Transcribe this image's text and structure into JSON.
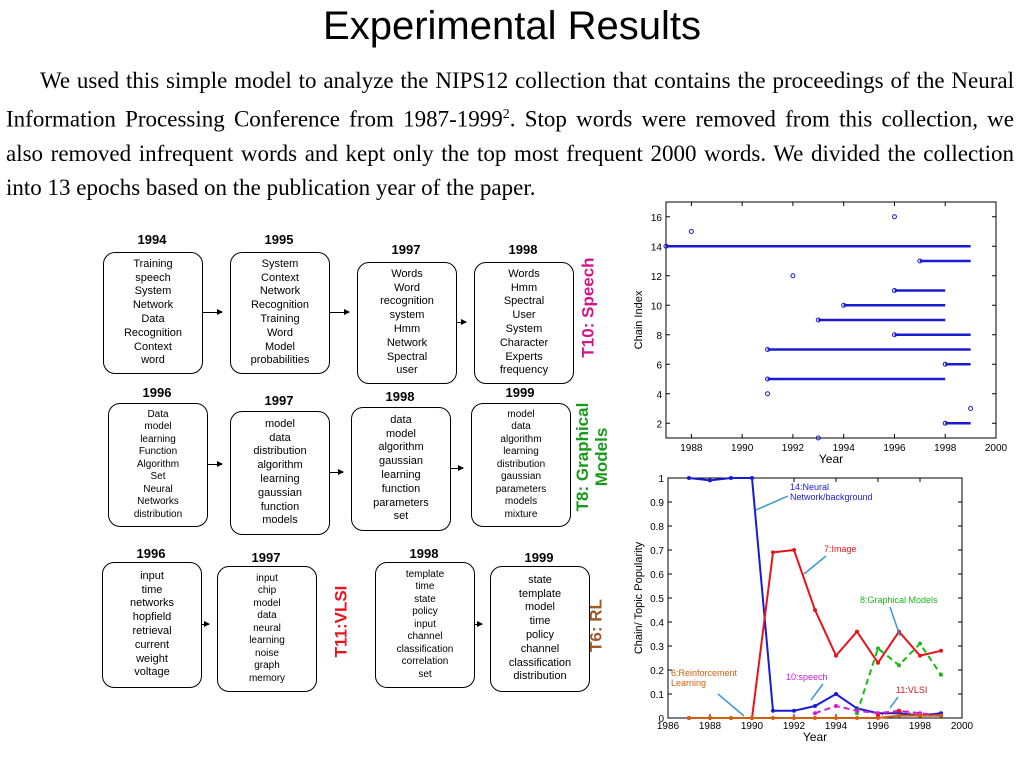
{
  "title": "Experimental Results",
  "paragraph": {
    "before_sup": "We used this simple model to analyze the NIPS12 collection that contains the proceedings of the Neural Information Processing Conference from 1987-1999",
    "sup": "2",
    "after_sup": ". Stop words were removed from this collection, we also removed infrequent words and kept only the top most frequent 2000 words.  We divided the collection into 13 epochs based on the publication year of the paper."
  },
  "rows": [
    {
      "label": "T10: Speech",
      "label_color": "#d4148c",
      "boxes": [
        {
          "year": "1994",
          "words": [
            "Training",
            "speech",
            "System",
            "Network",
            "Data",
            "Recognition",
            "Context",
            "word"
          ]
        },
        {
          "year": "1995",
          "words": [
            "System",
            "Context",
            "Network",
            "Recognition",
            "Training",
            "Word",
            "Model",
            "probabilities"
          ]
        },
        {
          "year": "1997",
          "words": [
            "Words",
            "Word",
            "recognition",
            "system",
            "Hmm",
            "Network",
            "Spectral",
            "user"
          ]
        },
        {
          "year": "1998",
          "words": [
            "Words",
            "Hmm",
            "Spectral",
            "User",
            "System",
            "Character",
            "Experts",
            "frequency"
          ]
        }
      ]
    },
    {
      "label": "T8: Graphical Models",
      "label_lines": [
        "T8: Graphical",
        "Models"
      ],
      "label_color": "#1a9a1a",
      "boxes": [
        {
          "year": "1996",
          "words": [
            "Data",
            "model",
            "learning",
            "Function",
            "Algorithm",
            "Set",
            "Neural",
            "Networks",
            "distribution"
          ]
        },
        {
          "year": "1997",
          "words": [
            "model",
            "data",
            "distribution",
            "algorithm",
            "learning",
            "gaussian",
            "function",
            "models"
          ]
        },
        {
          "year": "1998",
          "words": [
            "data",
            "model",
            "algorithm",
            "gaussian",
            "learning",
            "function",
            "parameters",
            "set"
          ]
        },
        {
          "year": "1999",
          "words": [
            "model",
            "data",
            "algorithm",
            "learning",
            "distribution",
            "gaussian",
            "parameters",
            "models",
            "mixture"
          ]
        }
      ]
    },
    {
      "label_vlsi": "T11:VLSI",
      "label_vlsi_color": "#e8141c",
      "label": "T6: RL",
      "label_color": "#a05a2c",
      "boxes": [
        {
          "year": "1996",
          "words": [
            "input",
            "time",
            "networks",
            "hopfield",
            "retrieval",
            "current",
            "weight",
            "voltage"
          ]
        },
        {
          "year": "1997",
          "words": [
            "input",
            "chip",
            "model",
            "data",
            "neural",
            "learning",
            "noise",
            "graph",
            "memory"
          ]
        },
        {
          "year": "1998",
          "words": [
            "template",
            "time",
            "state",
            "policy",
            "input",
            "channel",
            "classification",
            "correlation",
            "set"
          ]
        },
        {
          "year": "1999",
          "words": [
            "state",
            "template",
            "model",
            "time",
            "policy",
            "channel",
            "classification",
            "distribution"
          ]
        }
      ]
    }
  ],
  "chart_data": [
    {
      "type": "scatter",
      "title": "",
      "xlabel": "Year",
      "ylabel": "Chain Index",
      "xlim": [
        1987,
        2000
      ],
      "ylim": [
        1,
        17
      ],
      "xticks": [
        "1988",
        "1990",
        "1992",
        "1994",
        "1996",
        "1998",
        "2000"
      ],
      "yticks": [
        "2",
        "4",
        "6",
        "8",
        "10",
        "12",
        "14",
        "16"
      ],
      "color": "#1a1ad4",
      "segments": [
        {
          "chain": 14,
          "start": 1987,
          "end": 1999
        },
        {
          "chain": 13,
          "start": 1997,
          "end": 1999
        },
        {
          "chain": 11,
          "start": 1996,
          "end": 1998
        },
        {
          "chain": 10,
          "start": 1994,
          "end": 1998
        },
        {
          "chain": 9,
          "start": 1993,
          "end": 1998
        },
        {
          "chain": 8,
          "start": 1996,
          "end": 1999
        },
        {
          "chain": 7,
          "start": 1991,
          "end": 1999
        },
        {
          "chain": 6,
          "start": 1998,
          "end": 1999
        },
        {
          "chain": 5,
          "start": 1991,
          "end": 1998
        },
        {
          "chain": 2,
          "start": 1998,
          "end": 1999
        }
      ],
      "singletons": [
        {
          "year": 1988,
          "chain": 15
        },
        {
          "year": 1996,
          "chain": 16
        },
        {
          "year": 1992,
          "chain": 12
        },
        {
          "year": 1991,
          "chain": 4
        },
        {
          "year": 1999,
          "chain": 3
        },
        {
          "year": 1993,
          "chain": 1
        }
      ]
    },
    {
      "type": "line",
      "title": "",
      "xlabel": "Year",
      "ylabel": "Chain/ Topic Popularity",
      "xlim": [
        1986,
        2000
      ],
      "ylim": [
        0,
        1
      ],
      "xticks": [
        "1986",
        "1988",
        "1990",
        "1992",
        "1994",
        "1996",
        "1998",
        "2000"
      ],
      "yticks": [
        "0",
        "0.1",
        "0.2",
        "0.3",
        "0.4",
        "0.5",
        "0.6",
        "0.7",
        "0.8",
        "0.9",
        "1"
      ],
      "series": [
        {
          "name": "14:Neural Network/background",
          "color": "#1a1ad4",
          "dash": "",
          "x": [
            1987,
            1988,
            1989,
            1990,
            1991,
            1992,
            1993,
            1994,
            1995,
            1996,
            1997,
            1998,
            1999
          ],
          "y": [
            1.0,
            0.99,
            1.0,
            1.0,
            0.03,
            0.03,
            0.05,
            0.1,
            0.04,
            0.02,
            0.02,
            0.01,
            0.02
          ]
        },
        {
          "name": "7:Image",
          "color": "#e8141c",
          "dash": "",
          "x": [
            1987,
            1988,
            1989,
            1990,
            1991,
            1992,
            1993,
            1994,
            1995,
            1996,
            1997,
            1998,
            1999
          ],
          "y": [
            0,
            0,
            0,
            0,
            0.69,
            0.7,
            0.45,
            0.26,
            0.36,
            0.23,
            0.36,
            0.26,
            0.28
          ]
        },
        {
          "name": "8:Graphical Models",
          "color": "#1ab81a",
          "dash": "6,4",
          "x": [
            1995,
            1996,
            1997,
            1998,
            1999
          ],
          "y": [
            0.02,
            0.29,
            0.22,
            0.31,
            0.18
          ]
        },
        {
          "name": "10:speech",
          "color": "#d41ad4",
          "dash": "6,4",
          "x": [
            1993,
            1994,
            1995,
            1996,
            1997,
            1998,
            1999
          ],
          "y": [
            0.02,
            0.05,
            0.03,
            0.02,
            0.03,
            0.02,
            0.01
          ]
        },
        {
          "name": "11:VLSI",
          "color": "#e8141c",
          "dash": "1,3",
          "x": [
            1996,
            1997,
            1998,
            1999
          ],
          "y": [
            0.01,
            0.03,
            0.01,
            0.01
          ]
        },
        {
          "name": "6:Reinforcement Learning",
          "color": "#d06010",
          "dash": "",
          "x": [
            1987,
            1988,
            1989,
            1990,
            1991,
            1992,
            1993,
            1994,
            1995,
            1996,
            1997,
            1998,
            1999
          ],
          "y": [
            0,
            0,
            0,
            0,
            0,
            0,
            0,
            0,
            0,
            0,
            0.01,
            0.01,
            0.01
          ]
        }
      ],
      "annotations": [
        {
          "text": "14:Neural",
          "text2": "Network/background",
          "color": "#1a1ad4"
        },
        {
          "text": "7:Image",
          "color": "#e8141c"
        },
        {
          "text": "8:Graphical Models",
          "color": "#1ab81a"
        },
        {
          "text": "6:Reinforcement",
          "text2": "Learning",
          "color": "#d06010"
        },
        {
          "text": "10:speech",
          "color": "#d41ad4"
        },
        {
          "text": "11:VLSI",
          "color": "#e8141c"
        }
      ]
    }
  ]
}
